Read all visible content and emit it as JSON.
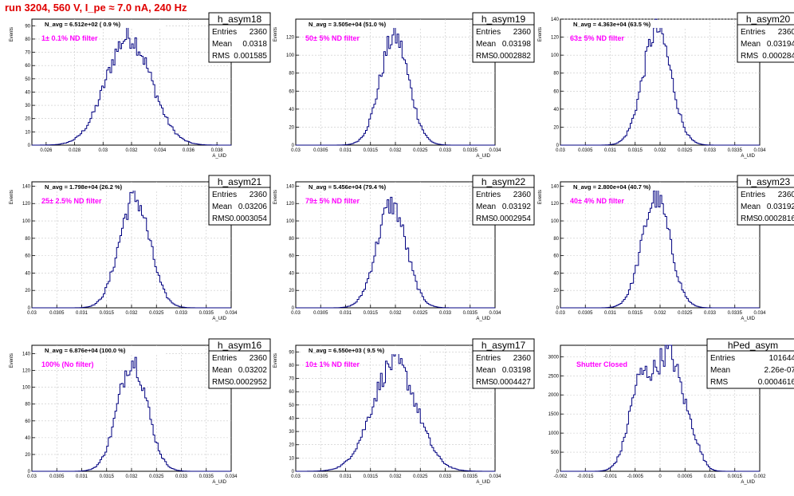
{
  "header": {
    "run_label": "run 3204,   560 V, I_pe ≈ 7.0 nA, 240 Hz"
  },
  "colors": {
    "histogram_line": "#000080",
    "filter_label": "#ff00ff",
    "run_label": "#e00000",
    "grid": "#c8c8c8"
  },
  "stats_labels": {
    "entries": "Entries",
    "mean": "Mean",
    "rms": "RMS"
  },
  "chart_data": [
    {
      "type": "histogram",
      "name": "h_asym18",
      "navg_label": "N_avg = 6.512e+02 ( 0.9 %)",
      "filter_label": "1± 0.1% ND filter",
      "entries": "2360",
      "mean": "0.0318",
      "rms": "0.001585",
      "mean_value": 0.0318,
      "rms_value": 0.001585,
      "xlim": [
        0.025,
        0.039
      ],
      "x_ticks": [
        "0.026",
        "0.028",
        "0.03",
        "0.032",
        "0.034",
        "0.036",
        "0.038"
      ],
      "x_tick_values": [
        0.026,
        0.028,
        0.03,
        0.032,
        0.034,
        0.036,
        0.038
      ],
      "ylim": [
        0,
        95
      ],
      "y_ticks": [
        "0",
        "10",
        "20",
        "30",
        "40",
        "50",
        "60",
        "70",
        "80",
        "90"
      ],
      "y_tick_values": [
        0,
        10,
        20,
        30,
        40,
        50,
        60,
        70,
        80,
        90
      ],
      "peak": 88,
      "xlabel": "A_UID",
      "ylabel": "Events",
      "grid": true
    },
    {
      "type": "histogram",
      "name": "h_asym19",
      "navg_label": "N_avg = 3.505e+04 (51.0 %)",
      "filter_label": "50± 5% ND filter",
      "entries": "2360",
      "mean": "0.03198",
      "rms": "0.0002882",
      "mean_value": 0.03198,
      "rms_value": 0.0002882,
      "xlim": [
        0.03,
        0.034
      ],
      "x_ticks": [
        "0.03",
        "0.0305",
        "0.031",
        "0.0315",
        "0.032",
        "0.0325",
        "0.033",
        "0.0335",
        "0.034"
      ],
      "x_tick_values": [
        0.03,
        0.0305,
        0.031,
        0.0315,
        0.032,
        0.0325,
        0.033,
        0.0335,
        0.034
      ],
      "ylim": [
        0,
        140
      ],
      "y_ticks": [
        "0",
        "20",
        "40",
        "60",
        "80",
        "100",
        "120"
      ],
      "y_tick_values": [
        0,
        20,
        40,
        60,
        80,
        100,
        120
      ],
      "peak": 130,
      "xlabel": "A_UID",
      "ylabel": "Events",
      "grid": true
    },
    {
      "type": "histogram",
      "name": "h_asym20",
      "navg_label": "N_avg = 4.363e+04 (63.5 %)",
      "filter_label": "63± 5% ND filter",
      "entries": "2360",
      "mean": "0.03194",
      "rms": "0.000284",
      "mean_value": 0.03194,
      "rms_value": 0.000284,
      "xlim": [
        0.03,
        0.034
      ],
      "x_ticks": [
        "0.03",
        "0.0305",
        "0.031",
        "0.0315",
        "0.032",
        "0.0325",
        "0.033",
        "0.0335",
        "0.034"
      ],
      "x_tick_values": [
        0.03,
        0.0305,
        0.031,
        0.0315,
        0.032,
        0.0325,
        0.033,
        0.0335,
        0.034
      ],
      "ylim": [
        0,
        140
      ],
      "y_ticks": [
        "0",
        "20",
        "40",
        "60",
        "80",
        "100",
        "120",
        "140"
      ],
      "y_tick_values": [
        0,
        20,
        40,
        60,
        80,
        100,
        120,
        140
      ],
      "peak": 138,
      "xlabel": "A_UID",
      "ylabel": "Events",
      "grid": true
    },
    {
      "type": "histogram",
      "name": "h_asym21",
      "navg_label": "N_avg = 1.798e+04 (26.2 %)",
      "filter_label": "25± 2.5% ND filter",
      "entries": "2360",
      "mean": "0.03206",
      "rms": "0.0003054",
      "mean_value": 0.03206,
      "rms_value": 0.0003054,
      "xlim": [
        0.03,
        0.034
      ],
      "x_ticks": [
        "0.03",
        "0.0305",
        "0.031",
        "0.0315",
        "0.032",
        "0.0325",
        "0.033",
        "0.0335",
        "0.034"
      ],
      "x_tick_values": [
        0.03,
        0.0305,
        0.031,
        0.0315,
        0.032,
        0.0325,
        0.033,
        0.0335,
        0.034
      ],
      "ylim": [
        0,
        145
      ],
      "y_ticks": [
        "0",
        "20",
        "40",
        "60",
        "80",
        "100",
        "120",
        "140"
      ],
      "y_tick_values": [
        0,
        20,
        40,
        60,
        80,
        100,
        120,
        140
      ],
      "peak": 136,
      "xlabel": "A_UID",
      "ylabel": "Events",
      "grid": true
    },
    {
      "type": "histogram",
      "name": "h_asym22",
      "navg_label": "N_avg = 5.456e+04 (79.4 %)",
      "filter_label": "79± 5% ND filter",
      "entries": "2360",
      "mean": "0.03192",
      "rms": "0.0002954",
      "mean_value": 0.03192,
      "rms_value": 0.0002954,
      "xlim": [
        0.03,
        0.034
      ],
      "x_ticks": [
        "0.03",
        "0.0305",
        "0.031",
        "0.0315",
        "0.032",
        "0.0325",
        "0.033",
        "0.0335",
        "0.034"
      ],
      "x_tick_values": [
        0.03,
        0.0305,
        0.031,
        0.0315,
        0.032,
        0.0325,
        0.033,
        0.0335,
        0.034
      ],
      "ylim": [
        0,
        145
      ],
      "y_ticks": [
        "0",
        "20",
        "40",
        "60",
        "80",
        "100",
        "120",
        "140"
      ],
      "y_tick_values": [
        0,
        20,
        40,
        60,
        80,
        100,
        120,
        140
      ],
      "peak": 128,
      "xlabel": "A_UID",
      "ylabel": "Events",
      "grid": true
    },
    {
      "type": "histogram",
      "name": "h_asym23",
      "navg_label": "N_avg = 2.800e+04 (40.7 %)",
      "filter_label": "40± 4% ND filter",
      "entries": "2360",
      "mean": "0.03192",
      "rms": "0.0002816",
      "mean_value": 0.03192,
      "rms_value": 0.0002816,
      "xlim": [
        0.03,
        0.034
      ],
      "x_ticks": [
        "0.03",
        "0.0305",
        "0.031",
        "0.0315",
        "0.032",
        "0.0325",
        "0.033",
        "0.0335",
        "0.034"
      ],
      "x_tick_values": [
        0.03,
        0.0305,
        0.031,
        0.0315,
        0.032,
        0.0325,
        0.033,
        0.0335,
        0.034
      ],
      "ylim": [
        0,
        145
      ],
      "y_ticks": [
        "0",
        "20",
        "40",
        "60",
        "80",
        "100",
        "120",
        "140"
      ],
      "y_tick_values": [
        0,
        20,
        40,
        60,
        80,
        100,
        120,
        140
      ],
      "peak": 136,
      "xlabel": "A_UID",
      "ylabel": "Events",
      "grid": true
    },
    {
      "type": "histogram",
      "name": "h_asym16",
      "navg_label": "N_avg = 6.876e+04 (100.0 %)",
      "filter_label": "100% (No filter)",
      "entries": "2360",
      "mean": "0.03202",
      "rms": "0.0002952",
      "mean_value": 0.03202,
      "rms_value": 0.0002952,
      "xlim": [
        0.03,
        0.034
      ],
      "x_ticks": [
        "0.03",
        "0.0305",
        "0.031",
        "0.0315",
        "0.032",
        "0.0325",
        "0.033",
        "0.0335",
        "0.034"
      ],
      "x_tick_values": [
        0.03,
        0.0305,
        0.031,
        0.0315,
        0.032,
        0.0325,
        0.033,
        0.0335,
        0.034
      ],
      "ylim": [
        0,
        150
      ],
      "y_ticks": [
        "0",
        "20",
        "40",
        "60",
        "80",
        "100",
        "120",
        "140"
      ],
      "y_tick_values": [
        0,
        20,
        40,
        60,
        80,
        100,
        120,
        140
      ],
      "peak": 142,
      "xlabel": "A_UID",
      "ylabel": "Events",
      "grid": true
    },
    {
      "type": "histogram",
      "name": "h_asym17",
      "navg_label": "N_avg = 6.550e+03 ( 9.5 %)",
      "filter_label": "10± 1% ND filter",
      "entries": "2360",
      "mean": "0.03198",
      "rms": "0.0004427",
      "mean_value": 0.03198,
      "rms_value": 0.0004427,
      "xlim": [
        0.03,
        0.034
      ],
      "x_ticks": [
        "0.03",
        "0.0305",
        "0.031",
        "0.0315",
        "0.032",
        "0.0325",
        "0.033",
        "0.0335",
        "0.034"
      ],
      "x_tick_values": [
        0.03,
        0.0305,
        0.031,
        0.0315,
        0.032,
        0.0325,
        0.033,
        0.0335,
        0.034
      ],
      "ylim": [
        0,
        95
      ],
      "y_ticks": [
        "0",
        "10",
        "20",
        "30",
        "40",
        "50",
        "60",
        "70",
        "80",
        "90"
      ],
      "y_tick_values": [
        0,
        10,
        20,
        30,
        40,
        50,
        60,
        70,
        80,
        90
      ],
      "peak": 88,
      "xlabel": "A_UID",
      "ylabel": "Events",
      "grid": true
    },
    {
      "type": "histogram",
      "name": "hPed_asym",
      "navg_label": "",
      "filter_label": "Shutter Closed",
      "entries": "101644",
      "mean": "2.26e-07",
      "rms": "0.0004616",
      "mean_value": 2.26e-07,
      "rms_value": 0.0004616,
      "xlim": [
        -0.002,
        0.002
      ],
      "x_ticks": [
        "-0.002",
        "-0.0015",
        "-0.001",
        "-0.0005",
        "0",
        "0.0005",
        "0.001",
        "0.0015",
        "0.002"
      ],
      "x_tick_values": [
        -0.002,
        -0.0015,
        -0.001,
        -0.0005,
        0,
        0.0005,
        0.001,
        0.0015,
        0.002
      ],
      "ylim": [
        0,
        3300
      ],
      "y_ticks": [
        "0",
        "500",
        "1000",
        "1500",
        "2000",
        "2500",
        "3000"
      ],
      "y_tick_values": [
        0,
        500,
        1000,
        1500,
        2000,
        2500,
        3000
      ],
      "peak": 3150,
      "xlabel": "A_UID",
      "ylabel": "",
      "grid": true
    }
  ]
}
